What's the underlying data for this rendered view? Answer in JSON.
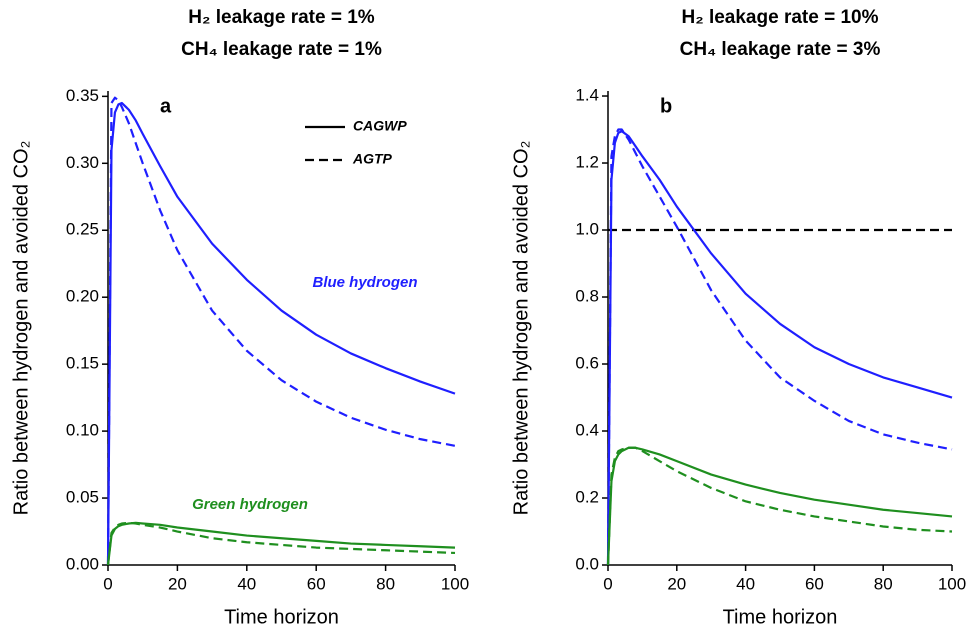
{
  "chart_data": [
    {
      "type": "line",
      "title": "H₂ leakage rate = 1%",
      "subtitle": "CH₄ leakage rate = 1%",
      "panel_label": "a",
      "xlabel": "Time horizon",
      "ylabel": "Ratio between hydrogen and avoided CO₂",
      "xlim": [
        0,
        100
      ],
      "xticks": [
        0,
        20,
        40,
        60,
        80,
        100
      ],
      "ylim": [
        0,
        0.354
      ],
      "yticks": [
        {
          "value": 0,
          "label": "0.00"
        },
        0.05,
        {
          "value": 0.1,
          "label": "0.10"
        },
        0.15,
        {
          "value": 0.2,
          "label": "0.20"
        },
        0.25,
        {
          "value": 0.3,
          "label": "0.30"
        },
        0.35
      ],
      "x": [
        0,
        1,
        2,
        3,
        4,
        6,
        8,
        10,
        15,
        20,
        30,
        40,
        50,
        60,
        70,
        80,
        90,
        100
      ],
      "series": [
        {
          "color": "#1f1fff",
          "dash": false,
          "values": [
            0,
            0.31,
            0.338,
            0.344,
            0.345,
            0.34,
            0.332,
            0.322,
            0.298,
            0.275,
            0.24,
            0.213,
            0.19,
            0.172,
            0.158,
            0.147,
            0.137,
            0.128
          ]
        },
        {
          "color": "#1f1fff",
          "dash": true,
          "values": [
            0,
            0.345,
            0.349,
            0.347,
            0.342,
            0.33,
            0.315,
            0.3,
            0.265,
            0.235,
            0.19,
            0.16,
            0.138,
            0.122,
            0.11,
            0.101,
            0.094,
            0.089
          ]
        },
        {
          "color": "#1f8f1f",
          "dash": false,
          "values": [
            0,
            0.022,
            0.027,
            0.029,
            0.03,
            0.031,
            0.0315,
            0.031,
            0.03,
            0.028,
            0.025,
            0.022,
            0.02,
            0.018,
            0.016,
            0.015,
            0.014,
            0.013
          ]
        },
        {
          "color": "#1f8f1f",
          "dash": true,
          "values": [
            0,
            0.024,
            0.028,
            0.03,
            0.031,
            0.0315,
            0.031,
            0.03,
            0.028,
            0.025,
            0.02,
            0.017,
            0.015,
            0.013,
            0.012,
            0.011,
            0.01,
            0.009
          ]
        }
      ],
      "legend": [
        {
          "label": "CAGWP",
          "dash": false
        },
        {
          "label": "AGTP",
          "dash": true
        }
      ],
      "annotations": [
        {
          "text": "Blue hydrogen",
          "color": "#1f1fff"
        },
        {
          "text": "Green hydrogen",
          "color": "#1f8f1f"
        }
      ]
    },
    {
      "type": "line",
      "title": "H₂ leakage rate = 10%",
      "subtitle": "CH₄ leakage rate = 3%",
      "panel_label": "b",
      "xlabel": "Time horizon",
      "ylabel": "Ratio between hydrogen and avoided CO₂",
      "xlim": [
        0,
        100
      ],
      "xticks": [
        0,
        20,
        40,
        60,
        80,
        100
      ],
      "ylim": [
        0,
        1.415
      ],
      "yticks": [
        {
          "value": 0,
          "label": "0.0"
        },
        0.2,
        0.4,
        0.6,
        0.8,
        {
          "value": 1,
          "label": "1.0"
        },
        1.2,
        1.4
      ],
      "x": [
        0,
        1,
        2,
        3,
        4,
        6,
        8,
        10,
        15,
        20,
        30,
        40,
        50,
        60,
        70,
        80,
        90,
        100
      ],
      "series": [
        {
          "color": "#1f1fff",
          "dash": false,
          "values": [
            0,
            1.15,
            1.26,
            1.29,
            1.295,
            1.28,
            1.25,
            1.22,
            1.15,
            1.07,
            0.93,
            0.81,
            0.72,
            0.65,
            0.6,
            0.56,
            0.53,
            0.5
          ]
        },
        {
          "color": "#1f1fff",
          "dash": true,
          "values": [
            0,
            1.22,
            1.28,
            1.3,
            1.3,
            1.27,
            1.23,
            1.19,
            1.1,
            1.01,
            0.82,
            0.67,
            0.56,
            0.49,
            0.43,
            0.39,
            0.365,
            0.345
          ]
        },
        {
          "color": "#1f8f1f",
          "dash": false,
          "values": [
            0,
            0.25,
            0.31,
            0.33,
            0.34,
            0.35,
            0.35,
            0.345,
            0.33,
            0.31,
            0.27,
            0.24,
            0.215,
            0.195,
            0.18,
            0.165,
            0.155,
            0.145
          ]
        },
        {
          "color": "#1f8f1f",
          "dash": true,
          "values": [
            0,
            0.27,
            0.32,
            0.34,
            0.345,
            0.35,
            0.35,
            0.34,
            0.31,
            0.28,
            0.23,
            0.19,
            0.165,
            0.145,
            0.13,
            0.115,
            0.105,
            0.1
          ]
        }
      ],
      "reference_line": {
        "value": 1,
        "color": "#000000"
      }
    }
  ]
}
